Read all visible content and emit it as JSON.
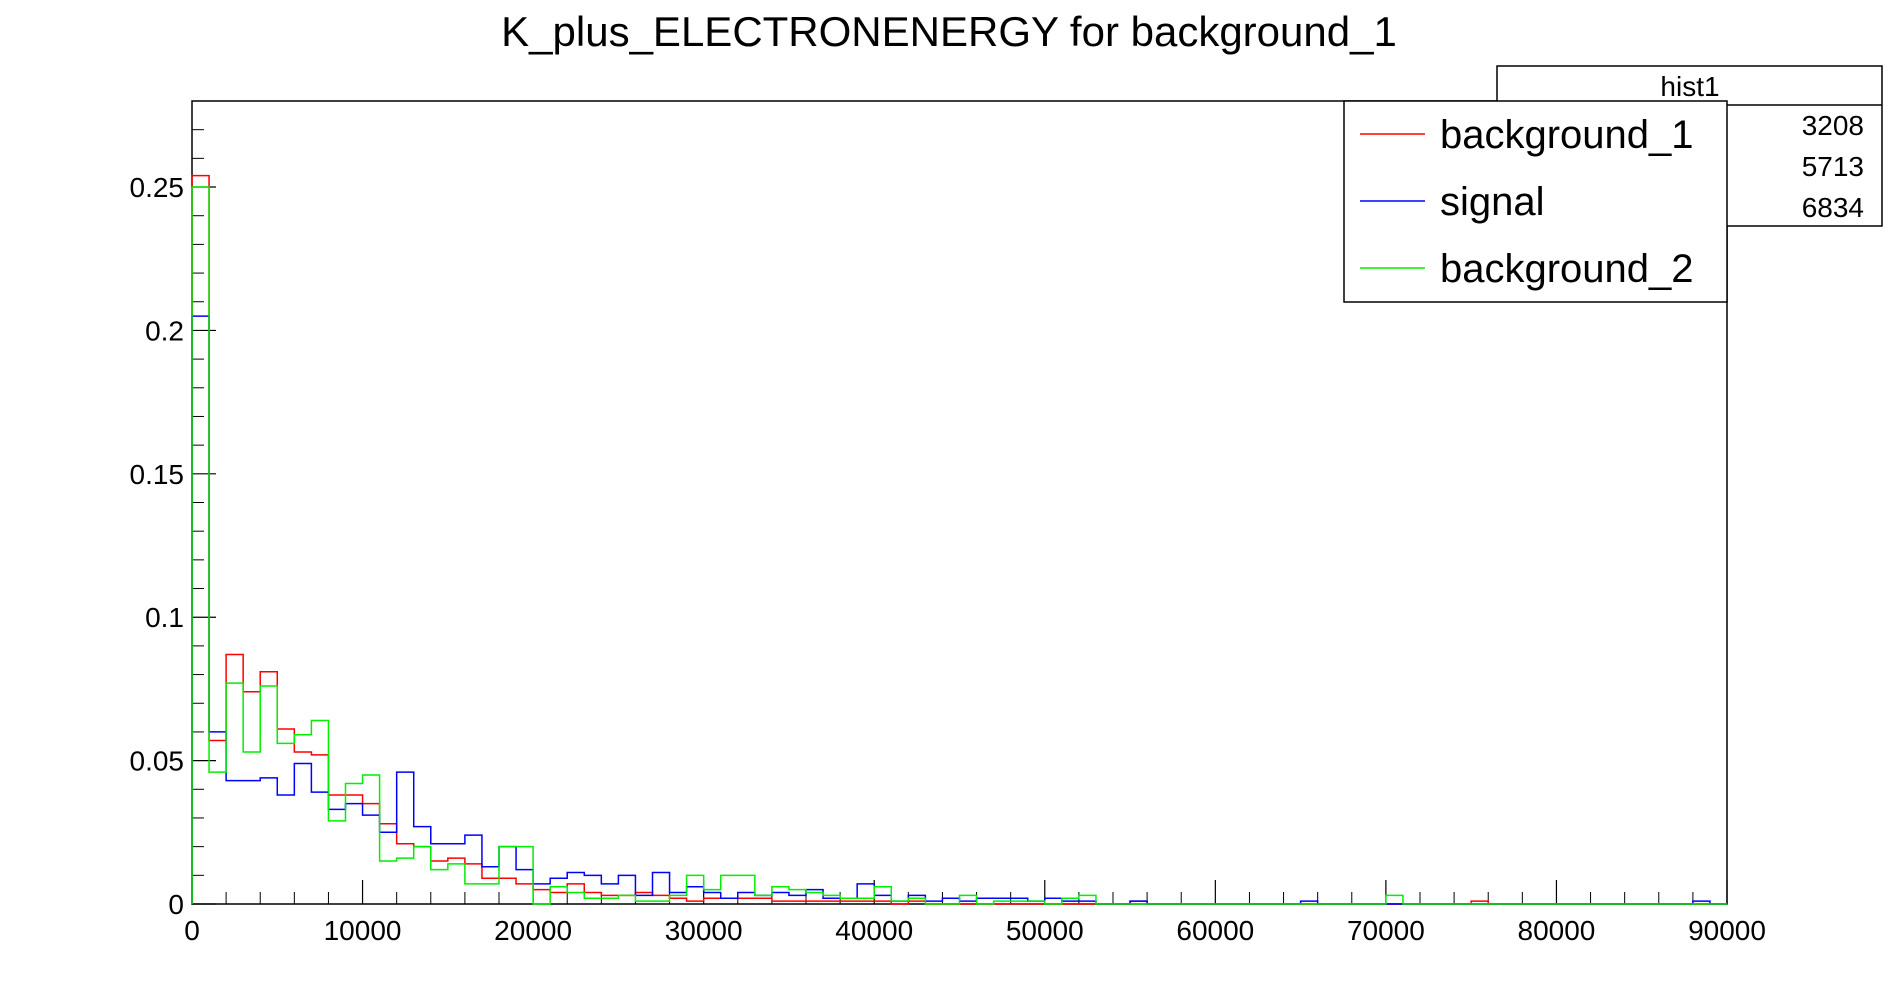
{
  "chart_data": {
    "type": "histogram",
    "title": "K_plus_ELECTRONENERGY for background_1",
    "xlabel": "",
    "ylabel": "",
    "xlim": [
      0,
      90000
    ],
    "ylim": [
      0,
      0.28
    ],
    "bin_width": 1000,
    "x_ticks": [
      0,
      10000,
      20000,
      30000,
      40000,
      50000,
      60000,
      70000,
      80000,
      90000
    ],
    "x_tick_labels": [
      "0",
      "10000",
      "20000",
      "30000",
      "40000",
      "50000",
      "60000",
      "70000",
      "80000",
      "90000"
    ],
    "y_ticks": [
      0,
      0.05,
      0.1,
      0.15,
      0.2,
      0.25
    ],
    "y_tick_labels": [
      "0",
      "0.05",
      "0.1",
      "0.15",
      "0.2",
      "0.25"
    ],
    "grid": false,
    "legend_position": "top-right",
    "series": [
      {
        "name": "background_1",
        "color": "#ff0000",
        "values": [
          0.254,
          0.057,
          0.087,
          0.074,
          0.081,
          0.061,
          0.053,
          0.052,
          0.038,
          0.038,
          0.035,
          0.028,
          0.021,
          0.02,
          0.015,
          0.016,
          0.014,
          0.009,
          0.009,
          0.007,
          0.005,
          0.004,
          0.007,
          0.004,
          0.003,
          0.003,
          0.004,
          0.003,
          0.002,
          0.001,
          0.002,
          0.002,
          0.002,
          0.002,
          0.001,
          0.001,
          0.001,
          0.001,
          0.001,
          0.001,
          0.001,
          0.0,
          0.001,
          0.0,
          0.0,
          0.0,
          0.0,
          0.0,
          0.0,
          0.0,
          0.0,
          0.0,
          0.0,
          0.0,
          0.0,
          0.001,
          0.0,
          0.0,
          0.0,
          0.0,
          0.0,
          0.0,
          0.0,
          0.0,
          0.0,
          0.0,
          0.0,
          0.0,
          0.0,
          0.0,
          0.0,
          0.0,
          0.0,
          0.0,
          0.0,
          0.001,
          0.0,
          0.0,
          0.0,
          0.0,
          0.0,
          0.0,
          0.0,
          0.0,
          0.0,
          0.0,
          0.0,
          0.0,
          0.0,
          0.0
        ]
      },
      {
        "name": "signal",
        "color": "#0000ff",
        "values": [
          0.205,
          0.06,
          0.043,
          0.043,
          0.044,
          0.038,
          0.049,
          0.039,
          0.033,
          0.035,
          0.031,
          0.025,
          0.046,
          0.027,
          0.021,
          0.021,
          0.024,
          0.013,
          0.02,
          0.012,
          0.007,
          0.009,
          0.011,
          0.01,
          0.007,
          0.01,
          0.003,
          0.011,
          0.004,
          0.006,
          0.004,
          0.002,
          0.004,
          0.003,
          0.004,
          0.003,
          0.005,
          0.002,
          0.002,
          0.007,
          0.003,
          0.001,
          0.003,
          0.001,
          0.002,
          0.001,
          0.002,
          0.002,
          0.002,
          0.001,
          0.002,
          0.001,
          0.001,
          0.0,
          0.0,
          0.001,
          0.0,
          0.0,
          0.0,
          0.0,
          0.0,
          0.0,
          0.0,
          0.0,
          0.0,
          0.001,
          0.0,
          0.0,
          0.0,
          0.0,
          0.0,
          0.0,
          0.0,
          0.0,
          0.0,
          0.0,
          0.0,
          0.0,
          0.0,
          0.0,
          0.0,
          0.0,
          0.0,
          0.0,
          0.0,
          0.0,
          0.0,
          0.0,
          0.001,
          0.0
        ]
      },
      {
        "name": "background_2",
        "color": "#00ee00",
        "values": [
          0.25,
          0.046,
          0.077,
          0.053,
          0.076,
          0.056,
          0.059,
          0.064,
          0.029,
          0.042,
          0.045,
          0.015,
          0.016,
          0.02,
          0.012,
          0.014,
          0.007,
          0.007,
          0.02,
          0.02,
          0.0,
          0.006,
          0.004,
          0.002,
          0.002,
          0.003,
          0.001,
          0.001,
          0.003,
          0.01,
          0.005,
          0.01,
          0.01,
          0.003,
          0.006,
          0.005,
          0.004,
          0.003,
          0.002,
          0.002,
          0.006,
          0.001,
          0.002,
          0.0,
          0.0,
          0.003,
          0.0,
          0.001,
          0.001,
          0.001,
          0.0,
          0.002,
          0.003,
          0.0,
          0.0,
          0.0,
          0.0,
          0.0,
          0.0,
          0.0,
          0.0,
          0.0,
          0.0,
          0.0,
          0.0,
          0.0,
          0.0,
          0.0,
          0.0,
          0.0,
          0.003,
          0.0,
          0.0,
          0.0,
          0.0,
          0.0,
          0.0,
          0.0,
          0.0,
          0.0,
          0.0,
          0.0,
          0.0,
          0.0,
          0.0,
          0.0,
          0.0,
          0.0,
          0.0,
          0.0
        ]
      }
    ],
    "stats_box": {
      "title": "hist1",
      "values": [
        "3208",
        "5713",
        "6834"
      ]
    }
  }
}
